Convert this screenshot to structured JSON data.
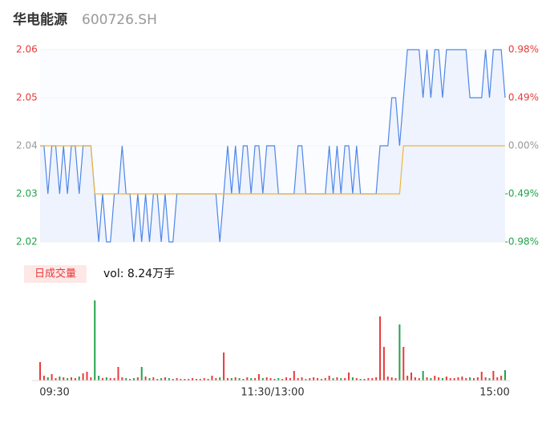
{
  "chart_data": {
    "type": "line",
    "title": "华电能源",
    "subtitle": "600726.SH",
    "x_labels": [
      "09:30",
      "11:30/13:00",
      "15:00"
    ],
    "ylim": [
      2.02,
      2.06
    ],
    "yticks": [
      {
        "value": 2.06,
        "label": "2.06"
      },
      {
        "value": 2.05,
        "label": "2.05"
      },
      {
        "value": 2.04,
        "label": "2.04"
      },
      {
        "value": 2.03,
        "label": "2.03"
      },
      {
        "value": 2.02,
        "label": "2.02"
      }
    ],
    "y2lim": [
      -0.98,
      0.98
    ],
    "y2ticks": [
      {
        "value": 0.98,
        "label": "0.98%"
      },
      {
        "value": 0.49,
        "label": "0.49%"
      },
      {
        "value": 0,
        "label": "0.00%"
      },
      {
        "value": -0.49,
        "label": "-0.49%"
      },
      {
        "value": -0.98,
        "label": "-0.98%"
      }
    ],
    "series": [
      {
        "name": "price",
        "color": "#4e86e8",
        "values": [
          2.04,
          2.04,
          2.03,
          2.04,
          2.04,
          2.03,
          2.04,
          2.03,
          2.04,
          2.04,
          2.03,
          2.04,
          2.04,
          2.04,
          2.03,
          2.02,
          2.03,
          2.02,
          2.02,
          2.03,
          2.03,
          2.04,
          2.03,
          2.03,
          2.02,
          2.03,
          2.02,
          2.03,
          2.02,
          2.03,
          2.03,
          2.02,
          2.03,
          2.02,
          2.02,
          2.03,
          2.03,
          2.03,
          2.03,
          2.03,
          2.03,
          2.03,
          2.03,
          2.03,
          2.03,
          2.03,
          2.02,
          2.03,
          2.04,
          2.03,
          2.04,
          2.03,
          2.04,
          2.04,
          2.03,
          2.04,
          2.04,
          2.03,
          2.04,
          2.04,
          2.04,
          2.03,
          2.03,
          2.03,
          2.03,
          2.03,
          2.04,
          2.04,
          2.03,
          2.03,
          2.03,
          2.03,
          2.03,
          2.03,
          2.04,
          2.03,
          2.04,
          2.03,
          2.04,
          2.04,
          2.03,
          2.04,
          2.03,
          2.03,
          2.03,
          2.03,
          2.03,
          2.04,
          2.04,
          2.04,
          2.05,
          2.05,
          2.04,
          2.05,
          2.06,
          2.06,
          2.06,
          2.06,
          2.05,
          2.06,
          2.05,
          2.06,
          2.06,
          2.05,
          2.06,
          2.06,
          2.06,
          2.06,
          2.06,
          2.06,
          2.05,
          2.05,
          2.05,
          2.05,
          2.06,
          2.05,
          2.06,
          2.06,
          2.06,
          2.05
        ]
      },
      {
        "name": "average",
        "color": "#f0b43c",
        "values": [
          2.04,
          2.04,
          2.04,
          2.04,
          2.04,
          2.04,
          2.04,
          2.04,
          2.04,
          2.04,
          2.04,
          2.04,
          2.04,
          2.04,
          2.03,
          2.03,
          2.03,
          2.03,
          2.03,
          2.03,
          2.03,
          2.03,
          2.03,
          2.03,
          2.03,
          2.03,
          2.03,
          2.03,
          2.03,
          2.03,
          2.03,
          2.03,
          2.03,
          2.03,
          2.03,
          2.03,
          2.03,
          2.03,
          2.03,
          2.03,
          2.03,
          2.03,
          2.03,
          2.03,
          2.03,
          2.03,
          2.03,
          2.03,
          2.03,
          2.03,
          2.03,
          2.03,
          2.03,
          2.03,
          2.03,
          2.03,
          2.03,
          2.03,
          2.03,
          2.03,
          2.03,
          2.03,
          2.03,
          2.03,
          2.03,
          2.03,
          2.03,
          2.03,
          2.03,
          2.03,
          2.03,
          2.03,
          2.03,
          2.03,
          2.03,
          2.03,
          2.03,
          2.03,
          2.03,
          2.03,
          2.03,
          2.03,
          2.03,
          2.03,
          2.03,
          2.03,
          2.03,
          2.03,
          2.03,
          2.03,
          2.03,
          2.03,
          2.03,
          2.04,
          2.04,
          2.04,
          2.04,
          2.04,
          2.04,
          2.04,
          2.04,
          2.04,
          2.04,
          2.04,
          2.04,
          2.04,
          2.04,
          2.04,
          2.04,
          2.04,
          2.04,
          2.04,
          2.04,
          2.04,
          2.04,
          2.04,
          2.04,
          2.04,
          2.04,
          2.04
        ]
      }
    ],
    "volume": {
      "legend": "日成交量",
      "label": "vol: 8.24万手",
      "ylim": [
        0,
        1000
      ],
      "up_color": "#e83a3a",
      "down_color": "#21a34a",
      "values": [
        230,
        60,
        40,
        80,
        30,
        50,
        40,
        30,
        40,
        30,
        50,
        90,
        110,
        40,
        1000,
        60,
        30,
        40,
        30,
        30,
        170,
        40,
        30,
        20,
        30,
        40,
        170,
        50,
        30,
        40,
        20,
        30,
        40,
        30,
        20,
        30,
        20,
        20,
        20,
        30,
        20,
        20,
        30,
        20,
        60,
        30,
        40,
        350,
        30,
        30,
        40,
        30,
        20,
        40,
        30,
        30,
        80,
        30,
        40,
        30,
        20,
        30,
        20,
        40,
        30,
        120,
        30,
        40,
        20,
        30,
        40,
        30,
        20,
        30,
        60,
        30,
        40,
        30,
        30,
        100,
        40,
        30,
        20,
        20,
        30,
        30,
        40,
        800,
        420,
        50,
        40,
        30,
        700,
        420,
        60,
        100,
        40,
        30,
        120,
        40,
        30,
        60,
        40,
        30,
        50,
        30,
        30,
        40,
        50,
        30,
        40,
        30,
        40,
        110,
        40,
        30,
        120,
        40,
        60,
        130
      ]
    }
  }
}
